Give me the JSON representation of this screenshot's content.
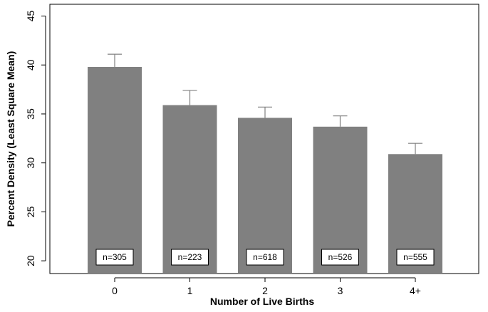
{
  "chart_data": {
    "type": "bar",
    "categories": [
      "0",
      "1",
      "2",
      "3",
      "4+"
    ],
    "values": [
      39.8,
      35.9,
      34.6,
      33.7,
      30.9
    ],
    "error_upper": [
      41.1,
      37.4,
      35.7,
      34.8,
      32.0
    ],
    "n_labels": [
      "n=305",
      "n=223",
      "n=618",
      "n=526",
      "n=555"
    ],
    "xlabel": "Number of Live Births",
    "ylabel": "Percent Density (Least Square Mean)",
    "ylim": [
      18.7,
      46.2
    ],
    "yticks": [
      20,
      25,
      30,
      35,
      40,
      45
    ],
    "grid": false,
    "colors": {
      "bar": "#808080",
      "axis": "#000000",
      "error_bar": "#808080"
    }
  }
}
